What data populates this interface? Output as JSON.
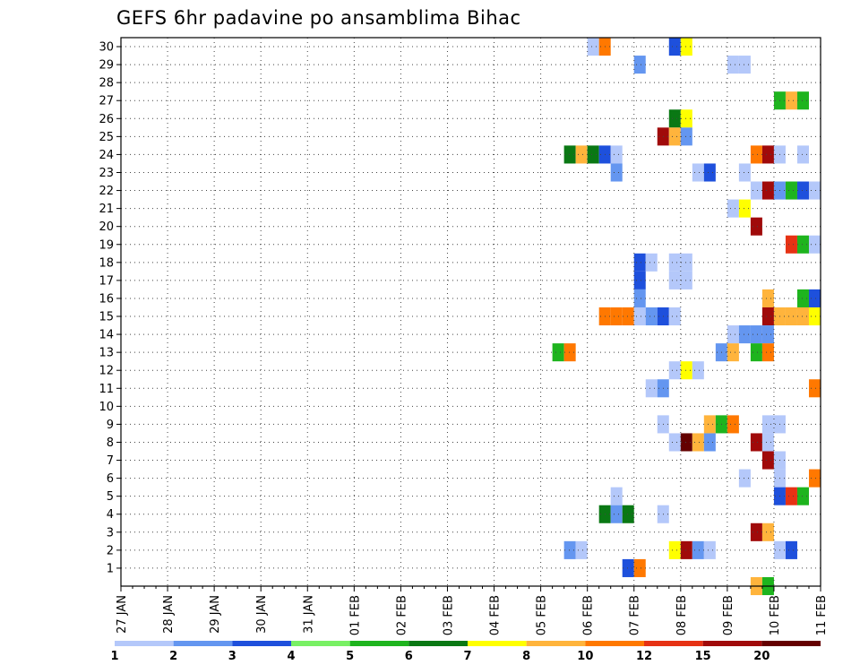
{
  "chart_data": {
    "type": "heatmap",
    "title": "GEFS 6hr padavine po ansamblima Bihac",
    "x_tick_labels": [
      "27 JAN",
      "28 JAN",
      "29 JAN",
      "30 JAN",
      "31 JAN",
      "01 FEB",
      "02 FEB",
      "03 FEB",
      "04 FEB",
      "05 FEB",
      "06 FEB",
      "07 FEB",
      "08 FEB",
      "09 FEB",
      "10 FEB",
      "11 FEB"
    ],
    "y_tick_labels": [
      "1",
      "2",
      "3",
      "4",
      "5",
      "6",
      "7",
      "8",
      "9",
      "10",
      "11",
      "12",
      "13",
      "14",
      "15",
      "16",
      "17",
      "18",
      "19",
      "20",
      "21",
      "22",
      "23",
      "24",
      "25",
      "26",
      "27",
      "28",
      "29",
      "30"
    ],
    "x_unit": "6-hour step from 27 JAN 00Z",
    "grid": true,
    "colorbar": {
      "placement": "bottom",
      "labels": [
        "1",
        "2",
        "3",
        "4",
        "5",
        "6",
        "7",
        "8",
        "10",
        "12",
        "15",
        "20"
      ],
      "colors": [
        "#b4c8fa",
        "#6496f0",
        "#1e50dc",
        "#78f064",
        "#1eb41e",
        "#0a7814",
        "#ffff00",
        "#ffb43c",
        "#ff7800",
        "#e63214",
        "#a00a0a",
        "#640000"
      ]
    },
    "cells": [
      {
        "m": 30,
        "t": [
          [
            40,
            0
          ],
          [
            41,
            8
          ],
          [
            47,
            2
          ],
          [
            48,
            6
          ]
        ]
      },
      {
        "m": 29,
        "t": [
          [
            44,
            1
          ],
          [
            52,
            0
          ],
          [
            53,
            0
          ]
        ]
      },
      {
        "m": 27,
        "t": [
          [
            56,
            4
          ],
          [
            57,
            7
          ],
          [
            58,
            4
          ]
        ]
      },
      {
        "m": 26,
        "t": [
          [
            47,
            5
          ],
          [
            48,
            6
          ]
        ]
      },
      {
        "m": 25,
        "t": [
          [
            46,
            10
          ],
          [
            47,
            7
          ],
          [
            48,
            1
          ]
        ]
      },
      {
        "m": 24,
        "t": [
          [
            38,
            5
          ],
          [
            39,
            7
          ],
          [
            40,
            5
          ],
          [
            41,
            2
          ],
          [
            42,
            0
          ],
          [
            54,
            8
          ],
          [
            55,
            10
          ],
          [
            56,
            0
          ],
          [
            58,
            0
          ]
        ]
      },
      {
        "m": 23,
        "t": [
          [
            42,
            1
          ],
          [
            49,
            0
          ],
          [
            50,
            2
          ],
          [
            53,
            0
          ]
        ]
      },
      {
        "m": 22,
        "t": [
          [
            54,
            0
          ],
          [
            55,
            10
          ],
          [
            56,
            1
          ],
          [
            57,
            4
          ],
          [
            58,
            2
          ],
          [
            59,
            0
          ]
        ]
      },
      {
        "m": 21,
        "t": [
          [
            52,
            0
          ],
          [
            53,
            6
          ]
        ]
      },
      {
        "m": 20,
        "t": [
          [
            54,
            10
          ]
        ]
      },
      {
        "m": 19,
        "t": [
          [
            57,
            9
          ],
          [
            58,
            4
          ],
          [
            59,
            0
          ]
        ]
      },
      {
        "m": 18,
        "t": [
          [
            44,
            2
          ],
          [
            45,
            0
          ],
          [
            47,
            0
          ],
          [
            48,
            0
          ]
        ]
      },
      {
        "m": 17,
        "t": [
          [
            44,
            2
          ],
          [
            47,
            0
          ],
          [
            48,
            0
          ]
        ]
      },
      {
        "m": 16,
        "t": [
          [
            44,
            1
          ],
          [
            55,
            7
          ],
          [
            58,
            4
          ],
          [
            59,
            2
          ]
        ]
      },
      {
        "m": 15,
        "t": [
          [
            41,
            8
          ],
          [
            42,
            8
          ],
          [
            43,
            8
          ],
          [
            44,
            0
          ],
          [
            45,
            1
          ],
          [
            46,
            2
          ],
          [
            47,
            0
          ],
          [
            55,
            10
          ],
          [
            56,
            7
          ],
          [
            57,
            7
          ],
          [
            58,
            7
          ],
          [
            59,
            6
          ]
        ]
      },
      {
        "m": 14,
        "t": [
          [
            52,
            0
          ],
          [
            53,
            1
          ],
          [
            54,
            1
          ],
          [
            55,
            1
          ]
        ]
      },
      {
        "m": 13,
        "t": [
          [
            37,
            4
          ],
          [
            38,
            8
          ],
          [
            51,
            1
          ],
          [
            52,
            7
          ],
          [
            54,
            4
          ],
          [
            55,
            8
          ]
        ]
      },
      {
        "m": 12,
        "t": [
          [
            47,
            0
          ],
          [
            48,
            6
          ],
          [
            49,
            0
          ]
        ]
      },
      {
        "m": 11,
        "t": [
          [
            45,
            0
          ],
          [
            46,
            1
          ],
          [
            59,
            8
          ]
        ]
      },
      {
        "m": 9,
        "t": [
          [
            46,
            0
          ],
          [
            50,
            7
          ],
          [
            51,
            4
          ],
          [
            52,
            8
          ],
          [
            55,
            0
          ],
          [
            56,
            0
          ]
        ]
      },
      {
        "m": 8,
        "t": [
          [
            47,
            0
          ],
          [
            48,
            11
          ],
          [
            49,
            7
          ],
          [
            50,
            1
          ],
          [
            54,
            10
          ],
          [
            55,
            0
          ]
        ]
      },
      {
        "m": 7,
        "t": [
          [
            55,
            10
          ],
          [
            56,
            0
          ]
        ]
      },
      {
        "m": 6,
        "t": [
          [
            53,
            0
          ],
          [
            56,
            0
          ],
          [
            59,
            8
          ]
        ]
      },
      {
        "m": 5,
        "t": [
          [
            42,
            0
          ],
          [
            56,
            2
          ],
          [
            57,
            9
          ],
          [
            58,
            4
          ]
        ]
      },
      {
        "m": 4,
        "t": [
          [
            41,
            5
          ],
          [
            42,
            1
          ],
          [
            43,
            5
          ],
          [
            46,
            0
          ]
        ]
      },
      {
        "m": 3,
        "t": [
          [
            54,
            10
          ],
          [
            55,
            7
          ]
        ]
      },
      {
        "m": 2,
        "t": [
          [
            38,
            1
          ],
          [
            39,
            0
          ],
          [
            47,
            6
          ],
          [
            48,
            10
          ],
          [
            49,
            1
          ],
          [
            50,
            0
          ],
          [
            56,
            0
          ],
          [
            57,
            2
          ]
        ]
      },
      {
        "m": 1,
        "t": [
          [
            43,
            2
          ],
          [
            44,
            8
          ]
        ]
      },
      {
        "m": 0,
        "t": [
          [
            54,
            7
          ],
          [
            55,
            4
          ]
        ]
      }
    ]
  }
}
